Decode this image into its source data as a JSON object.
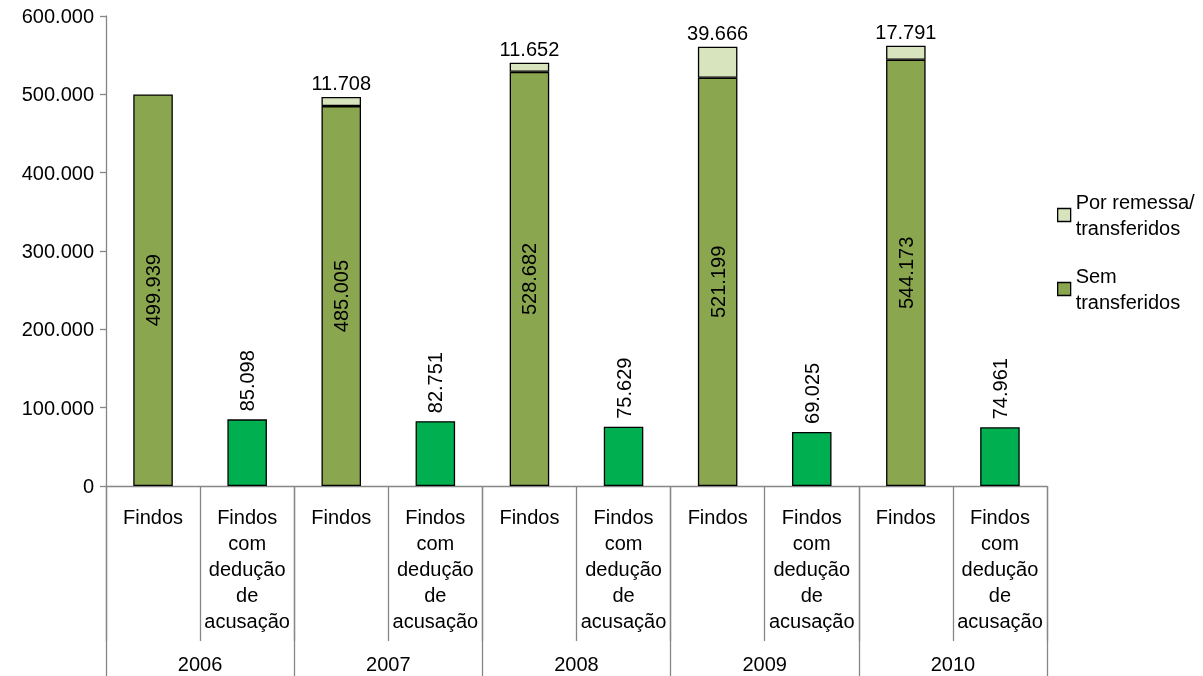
{
  "chart_data": {
    "type": "bar",
    "stacked": true,
    "legend": "right",
    "categories": [
      "Findos",
      "Findos com dedução de acusação",
      "Findos",
      "Findos com dedução de acusação",
      "Findos",
      "Findos com dedução de acusação",
      "Findos",
      "Findos com dedução de acusação",
      "Findos",
      "Findos com dedução de acusação"
    ],
    "annotations": [
      "2006",
      "2007",
      "2008",
      "2009",
      "2010"
    ],
    "ylim": [
      0,
      600000
    ],
    "yticks": [
      0,
      {
        "value": 100000,
        "label": "100.000"
      },
      {
        "value": 200000,
        "label": "200.000"
      },
      {
        "value": 300000,
        "label": "300.000"
      },
      {
        "value": 400000,
        "label": "400.000"
      },
      {
        "value": 500000,
        "label": "500.000"
      },
      {
        "value": 600000,
        "label": "600.000"
      }
    ],
    "series": [
      {
        "name": "Sem transferidos",
        "color": "#8aa64e",
        "values": [
          499939,
          null,
          485005,
          null,
          528682,
          null,
          521199,
          null,
          544173,
          null
        ],
        "value_labels": [
          "499.939",
          null,
          "485.005",
          null,
          "528.682",
          null,
          "521.199",
          null,
          "544.173",
          null
        ]
      },
      {
        "name": "Por remessa/ transferidos",
        "color": "#d7e4bd",
        "values": [
          null,
          null,
          11708,
          null,
          11652,
          null,
          39666,
          null,
          17791,
          null
        ],
        "value_labels": [
          null,
          null,
          "11.708",
          null,
          "11.652",
          null,
          "39.666",
          null,
          "17.791",
          null
        ]
      },
      {
        "color": "#00b050",
        "values": [
          null,
          85098,
          null,
          82751,
          null,
          75629,
          null,
          69025,
          null,
          74961
        ],
        "value_labels": [
          null,
          "85.098",
          null,
          "82.751",
          null,
          "75.629",
          null,
          "69.025",
          null,
          "74.961"
        ]
      }
    ]
  }
}
